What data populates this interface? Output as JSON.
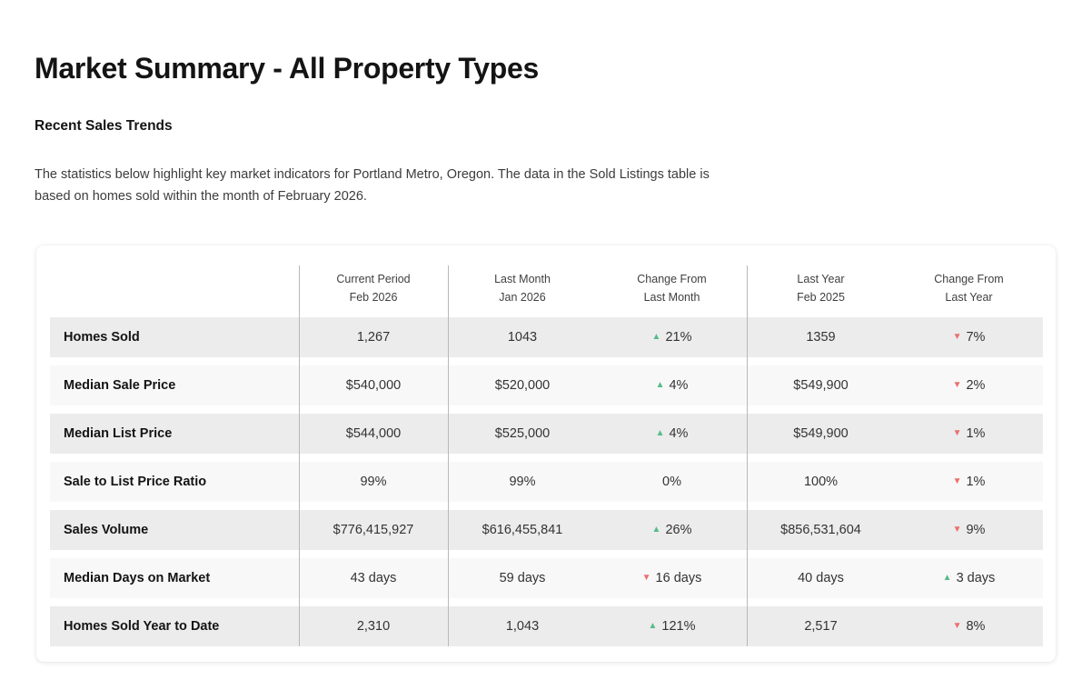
{
  "page": {
    "title": "Market Summary - All Property Types",
    "section_heading": "Recent Sales Trends",
    "description": "The statistics below highlight key market indicators for Portland Metro, Oregon. The data in the Sold Listings table is based on homes sold within the month of February 2026."
  },
  "colors": {
    "positive": "#57bb8a",
    "negative": "#ed6e6e"
  },
  "icons": {
    "trend_up": "▲",
    "trend_down": "▼"
  },
  "table": {
    "columns": [
      {
        "key": "current-period",
        "line1": "Current Period",
        "line2": "Feb 2026"
      },
      {
        "key": "last-month",
        "line1": "Last Month",
        "line2": "Jan 2026"
      },
      {
        "key": "change-last-month",
        "line1": "Change From",
        "line2": "Last Month"
      },
      {
        "key": "last-year",
        "line1": "Last Year",
        "line2": "Feb 2025"
      },
      {
        "key": "change-last-year",
        "line1": "Change From",
        "line2": "Last Year"
      }
    ],
    "rows": [
      {
        "label": "Homes Sold",
        "current_period": "1,267",
        "last_month": "1043",
        "change_last_month": {
          "direction": "up",
          "text": "21%"
        },
        "last_year": "1359",
        "change_last_year": {
          "direction": "down",
          "text": "7%"
        }
      },
      {
        "label": "Median Sale Price",
        "current_period": "$540,000",
        "last_month": "$520,000",
        "change_last_month": {
          "direction": "up",
          "text": "4%"
        },
        "last_year": "$549,900",
        "change_last_year": {
          "direction": "down",
          "text": "2%"
        }
      },
      {
        "label": "Median List Price",
        "current_period": "$544,000",
        "last_month": "$525,000",
        "change_last_month": {
          "direction": "up",
          "text": "4%"
        },
        "last_year": "$549,900",
        "change_last_year": {
          "direction": "down",
          "text": "1%"
        }
      },
      {
        "label": "Sale to List Price Ratio",
        "current_period": "99%",
        "last_month": "99%",
        "change_last_month": {
          "direction": "none",
          "text": "0%"
        },
        "last_year": "100%",
        "change_last_year": {
          "direction": "down",
          "text": "1%"
        }
      },
      {
        "label": "Sales Volume",
        "current_period": "$776,415,927",
        "last_month": "$616,455,841",
        "change_last_month": {
          "direction": "up",
          "text": "26%"
        },
        "last_year": "$856,531,604",
        "change_last_year": {
          "direction": "down",
          "text": "9%"
        }
      },
      {
        "label": "Median Days on Market",
        "current_period": "43 days",
        "last_month": "59 days",
        "change_last_month": {
          "direction": "down",
          "text": "16 days"
        },
        "last_year": "40 days",
        "change_last_year": {
          "direction": "up",
          "text": "3 days"
        }
      },
      {
        "label": "Homes Sold Year to Date",
        "current_period": "2,310",
        "last_month": "1,043",
        "change_last_month": {
          "direction": "up",
          "text": "121%"
        },
        "last_year": "2,517",
        "change_last_year": {
          "direction": "down",
          "text": "8%"
        }
      }
    ]
  }
}
